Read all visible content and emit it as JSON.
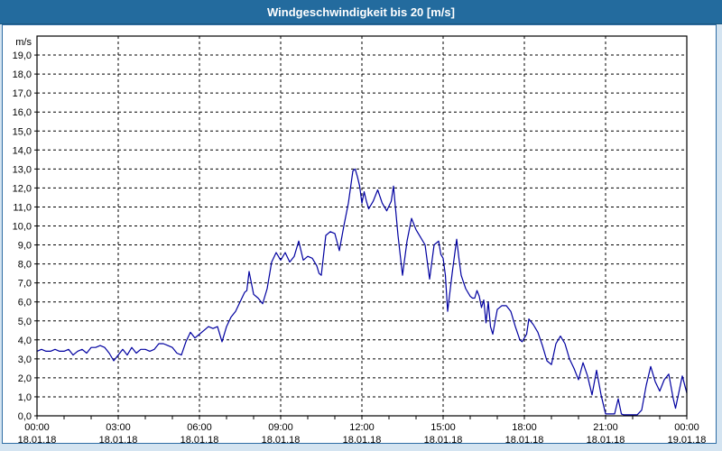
{
  "window": {
    "title": "Windgeschwindigkeit bis 20 [m/s]"
  },
  "colors": {
    "titlebar": "#236b9e",
    "frame_border": "#2e6da4",
    "outer_background": "#d4e4f1",
    "plot_background": "#ffffff",
    "grid": "#000000",
    "line": "#0000a0",
    "text": "#000000"
  },
  "chart_data": {
    "type": "line",
    "title": "Windgeschwindigkeit bis 20 [m/s]",
    "unit_label": "m/s",
    "ylabel": "m/s",
    "xlabel": "",
    "ylim": [
      0,
      20
    ],
    "xlim_minutes": [
      0,
      1440
    ],
    "grid": "dashed",
    "legend": "none",
    "y_tick_labels": [
      "0,0",
      "1,0",
      "2,0",
      "3,0",
      "4,0",
      "5,0",
      "6,0",
      "7,0",
      "8,0",
      "9,0",
      "10,0",
      "11,0",
      "12,0",
      "13,0",
      "14,0",
      "15,0",
      "16,0",
      "17,0",
      "18,0",
      "19,0"
    ],
    "x_ticks": [
      {
        "time": "00:00",
        "date": "18.01.18"
      },
      {
        "time": "03:00",
        "date": "18.01.18"
      },
      {
        "time": "06:00",
        "date": "18.01.18"
      },
      {
        "time": "09:00",
        "date": "18.01.18"
      },
      {
        "time": "12:00",
        "date": "18.01.18"
      },
      {
        "time": "15:00",
        "date": "18.01.18"
      },
      {
        "time": "18:00",
        "date": "18.01.18"
      },
      {
        "time": "21:00",
        "date": "18.01.18"
      },
      {
        "time": "00:00",
        "date": "19.01.18"
      }
    ],
    "x_major_tick_minutes": 180,
    "x_minor_tick_minutes": 60,
    "series": [
      {
        "name": "Windgeschwindigkeit",
        "unit": "m/s",
        "points": [
          [
            0,
            3.4
          ],
          [
            10,
            3.5
          ],
          [
            20,
            3.4
          ],
          [
            30,
            3.4
          ],
          [
            40,
            3.5
          ],
          [
            50,
            3.4
          ],
          [
            60,
            3.4
          ],
          [
            70,
            3.5
          ],
          [
            80,
            3.2
          ],
          [
            90,
            3.4
          ],
          [
            100,
            3.5
          ],
          [
            110,
            3.3
          ],
          [
            120,
            3.6
          ],
          [
            130,
            3.6
          ],
          [
            140,
            3.7
          ],
          [
            150,
            3.6
          ],
          [
            160,
            3.3
          ],
          [
            170,
            2.9
          ],
          [
            180,
            3.2
          ],
          [
            190,
            3.5
          ],
          [
            200,
            3.2
          ],
          [
            210,
            3.6
          ],
          [
            220,
            3.3
          ],
          [
            230,
            3.5
          ],
          [
            240,
            3.5
          ],
          [
            250,
            3.4
          ],
          [
            260,
            3.5
          ],
          [
            270,
            3.8
          ],
          [
            280,
            3.8
          ],
          [
            290,
            3.7
          ],
          [
            300,
            3.6
          ],
          [
            310,
            3.3
          ],
          [
            320,
            3.2
          ],
          [
            330,
            3.9
          ],
          [
            340,
            4.4
          ],
          [
            350,
            4.1
          ],
          [
            360,
            4.3
          ],
          [
            370,
            4.5
          ],
          [
            380,
            4.7
          ],
          [
            390,
            4.6
          ],
          [
            400,
            4.7
          ],
          [
            410,
            3.9
          ],
          [
            420,
            4.7
          ],
          [
            430,
            5.2
          ],
          [
            440,
            5.5
          ],
          [
            450,
            6.0
          ],
          [
            460,
            6.5
          ],
          [
            465,
            6.6
          ],
          [
            470,
            7.6
          ],
          [
            480,
            6.4
          ],
          [
            490,
            6.2
          ],
          [
            500,
            5.9
          ],
          [
            510,
            6.7
          ],
          [
            520,
            8.1
          ],
          [
            530,
            8.6
          ],
          [
            540,
            8.2
          ],
          [
            550,
            8.6
          ],
          [
            560,
            8.1
          ],
          [
            570,
            8.4
          ],
          [
            580,
            9.2
          ],
          [
            590,
            8.2
          ],
          [
            600,
            8.4
          ],
          [
            610,
            8.3
          ],
          [
            620,
            7.9
          ],
          [
            625,
            7.5
          ],
          [
            630,
            7.4
          ],
          [
            640,
            9.5
          ],
          [
            650,
            9.7
          ],
          [
            660,
            9.6
          ],
          [
            670,
            8.7
          ],
          [
            680,
            10.0
          ],
          [
            690,
            11.2
          ],
          [
            700,
            12.9
          ],
          [
            705,
            13.0
          ],
          [
            710,
            12.6
          ],
          [
            715,
            12.1
          ],
          [
            720,
            11.2
          ],
          [
            725,
            11.8
          ],
          [
            730,
            11.3
          ],
          [
            735,
            10.9
          ],
          [
            745,
            11.3
          ],
          [
            755,
            11.9
          ],
          [
            765,
            11.2
          ],
          [
            775,
            10.8
          ],
          [
            785,
            11.3
          ],
          [
            790,
            12.1
          ],
          [
            800,
            9.5
          ],
          [
            810,
            7.4
          ],
          [
            820,
            9.2
          ],
          [
            830,
            10.4
          ],
          [
            840,
            9.8
          ],
          [
            850,
            9.4
          ],
          [
            860,
            9.0
          ],
          [
            870,
            7.2
          ],
          [
            880,
            9.0
          ],
          [
            890,
            9.2
          ],
          [
            895,
            8.5
          ],
          [
            900,
            8.3
          ],
          [
            905,
            7.4
          ],
          [
            910,
            5.5
          ],
          [
            920,
            7.5
          ],
          [
            930,
            9.3
          ],
          [
            935,
            8.3
          ],
          [
            940,
            7.4
          ],
          [
            950,
            6.7
          ],
          [
            960,
            6.3
          ],
          [
            965,
            6.2
          ],
          [
            970,
            6.2
          ],
          [
            975,
            6.6
          ],
          [
            980,
            6.3
          ],
          [
            985,
            5.7
          ],
          [
            990,
            6.1
          ],
          [
            995,
            4.9
          ],
          [
            1000,
            6.0
          ],
          [
            1005,
            4.7
          ],
          [
            1010,
            4.3
          ],
          [
            1020,
            5.6
          ],
          [
            1030,
            5.8
          ],
          [
            1040,
            5.8
          ],
          [
            1050,
            5.5
          ],
          [
            1060,
            4.7
          ],
          [
            1070,
            4.0
          ],
          [
            1075,
            3.9
          ],
          [
            1080,
            4.1
          ],
          [
            1085,
            4.3
          ],
          [
            1090,
            5.1
          ],
          [
            1100,
            4.8
          ],
          [
            1110,
            4.4
          ],
          [
            1120,
            3.7
          ],
          [
            1130,
            2.9
          ],
          [
            1140,
            2.7
          ],
          [
            1150,
            3.8
          ],
          [
            1160,
            4.2
          ],
          [
            1170,
            3.8
          ],
          [
            1180,
            3.0
          ],
          [
            1190,
            2.5
          ],
          [
            1200,
            1.9
          ],
          [
            1210,
            2.8
          ],
          [
            1220,
            2.1
          ],
          [
            1230,
            1.1
          ],
          [
            1240,
            2.4
          ],
          [
            1250,
            1.1
          ],
          [
            1260,
            0.1
          ],
          [
            1270,
            0.1
          ],
          [
            1280,
            0.1
          ],
          [
            1288,
            0.9
          ],
          [
            1295,
            0.1
          ],
          [
            1300,
            0.05
          ],
          [
            1310,
            0.05
          ],
          [
            1320,
            0.05
          ],
          [
            1330,
            0.05
          ],
          [
            1340,
            0.3
          ],
          [
            1350,
            1.6
          ],
          [
            1360,
            2.6
          ],
          [
            1370,
            1.8
          ],
          [
            1380,
            1.3
          ],
          [
            1390,
            1.9
          ],
          [
            1400,
            2.2
          ],
          [
            1410,
            0.9
          ],
          [
            1415,
            0.4
          ],
          [
            1430,
            2.1
          ],
          [
            1440,
            1.2
          ]
        ]
      }
    ]
  }
}
